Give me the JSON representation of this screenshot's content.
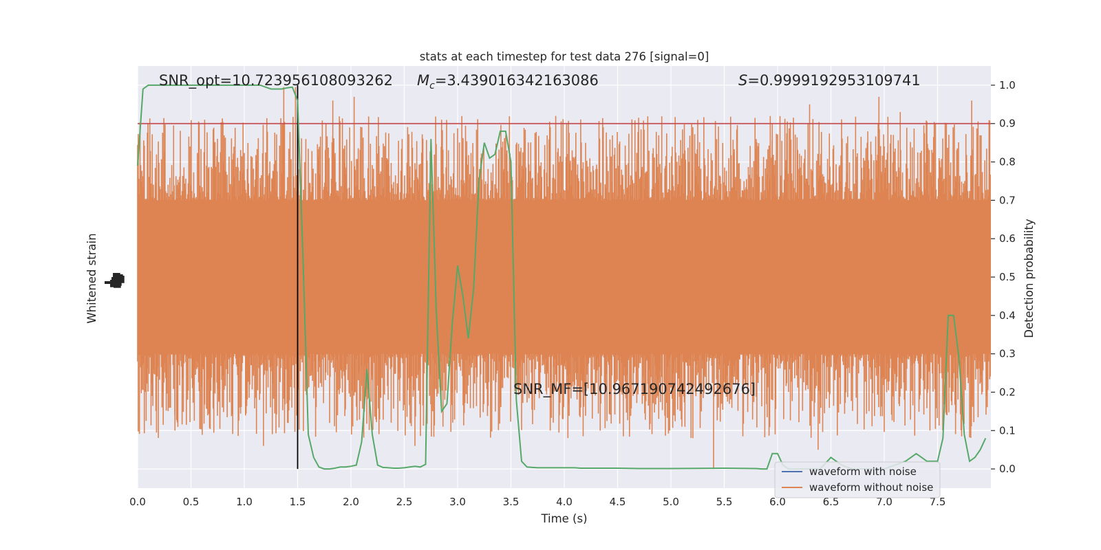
{
  "chart_data": {
    "type": "line",
    "title": "stats at each timestep for test data 276 [signal=0]",
    "xlabel": "Time (s)",
    "ylabel_left": "Whitened strain",
    "ylabel_right": "Detection probability",
    "xlim": [
      0,
      8
    ],
    "xticks": [
      "0.0",
      "0.5",
      "1.0",
      "1.5",
      "2.0",
      "2.5",
      "3.0",
      "3.5",
      "4.0",
      "4.5",
      "5.0",
      "5.5",
      "6.0",
      "6.5",
      "7.0",
      "7.5"
    ],
    "right_ylim": [
      -0.05,
      1.05
    ],
    "right_yticks": [
      "0.0",
      "0.1",
      "0.2",
      "0.3",
      "0.4",
      "0.5",
      "0.6",
      "0.7",
      "0.8",
      "0.9",
      "1.0"
    ],
    "grid": true,
    "legend_position": "lower right",
    "colors": {
      "background": "#EAEAF2",
      "grid": "#FFFFFF",
      "waveform_with_noise": "#4C72B0",
      "waveform_without_noise": "#DD8452",
      "probability": "#55A868",
      "threshold": "#C44E52",
      "marker": "#000000"
    },
    "annotations": {
      "snr_opt": "SNR_opt=10.723956108093262",
      "chirp_mass_symbol": "M",
      "chirp_mass_subscript": "c",
      "chirp_mass_value": "=3.439016342163086",
      "stat_symbol": "S",
      "stat_value": "=0.9999192953109741",
      "snr_mf": "SNR_MF=[10.967190742492676]"
    },
    "threshold": 0.9,
    "marker_time": 1.5,
    "noise_band": {
      "dense_low": 0.3,
      "dense_high": 0.7,
      "spike_max": 0.998,
      "spike_min": 0.0
    },
    "series": [
      {
        "name": "waveform with noise",
        "kind": "strain"
      },
      {
        "name": "waveform without noise",
        "kind": "strain"
      }
    ],
    "detection_probability": {
      "t": [
        0.0,
        0.05,
        0.1,
        0.15,
        0.2,
        0.25,
        0.3,
        0.35,
        0.4,
        0.45,
        0.5,
        0.55,
        0.6,
        0.65,
        0.7,
        0.75,
        0.8,
        0.85,
        0.9,
        0.95,
        1.0,
        1.05,
        1.1,
        1.15,
        1.2,
        1.25,
        1.3,
        1.35,
        1.4,
        1.45,
        1.5,
        1.55,
        1.6,
        1.65,
        1.7,
        1.75,
        1.8,
        1.85,
        1.9,
        1.95,
        2.0,
        2.05,
        2.1,
        2.15,
        2.2,
        2.25,
        2.3,
        2.35,
        2.4,
        2.45,
        2.5,
        2.55,
        2.6,
        2.65,
        2.7,
        2.75,
        2.8,
        2.85,
        2.9,
        2.95,
        3.0,
        3.05,
        3.1,
        3.15,
        3.2,
        3.25,
        3.3,
        3.35,
        3.4,
        3.45,
        3.5,
        3.55,
        3.6,
        3.65,
        3.7,
        3.75,
        3.8,
        3.85,
        3.9,
        3.95,
        4.0,
        4.05,
        4.1,
        4.15,
        4.2,
        4.3,
        4.5,
        4.7,
        5.0,
        5.5,
        5.8,
        5.85,
        5.9,
        5.95,
        6.0,
        6.05,
        6.1,
        6.2,
        6.3,
        6.4,
        6.5,
        6.55,
        6.6,
        6.7,
        6.8,
        6.9,
        7.0,
        7.1,
        7.2,
        7.25,
        7.3,
        7.35,
        7.4,
        7.45,
        7.5,
        7.55,
        7.6,
        7.65,
        7.7,
        7.75,
        7.8,
        7.85,
        7.9,
        7.95
      ],
      "p": [
        0.79,
        0.99,
        1.0,
        1.0,
        1.0,
        1.0,
        1.0,
        1.0,
        1.0,
        1.0,
        1.0,
        1.0,
        1.0,
        1.0,
        1.0,
        1.0,
        1.0,
        1.0,
        1.0,
        1.0,
        1.0,
        1.0,
        1.0,
        1.0,
        0.995,
        0.99,
        0.99,
        0.99,
        0.993,
        0.995,
        0.96,
        0.55,
        0.09,
        0.03,
        0.005,
        0.0,
        0.0,
        0.002,
        0.005,
        0.005,
        0.007,
        0.01,
        0.07,
        0.26,
        0.09,
        0.01,
        0.004,
        0.003,
        0.002,
        0.002,
        0.003,
        0.005,
        0.007,
        0.005,
        0.012,
        0.86,
        0.41,
        0.15,
        0.17,
        0.38,
        0.53,
        0.45,
        0.34,
        0.47,
        0.75,
        0.85,
        0.81,
        0.82,
        0.88,
        0.88,
        0.8,
        0.18,
        0.02,
        0.005,
        0.004,
        0.003,
        0.003,
        0.003,
        0.003,
        0.003,
        0.003,
        0.003,
        0.003,
        0.002,
        0.002,
        0.002,
        0.002,
        0.001,
        0.001,
        0.002,
        0.001,
        0.0,
        0.0,
        0.04,
        0.04,
        0.01,
        0.0,
        0.0,
        0.0,
        0.0,
        0.03,
        0.02,
        0.01,
        0.0,
        0.0,
        0.0,
        0.0,
        0.01,
        0.02,
        0.03,
        0.04,
        0.03,
        0.02,
        0.02,
        0.02,
        0.08,
        0.4,
        0.4,
        0.29,
        0.09,
        0.02,
        0.03,
        0.05,
        0.08
      ]
    },
    "left_axis_ticks_note": "■"
  }
}
